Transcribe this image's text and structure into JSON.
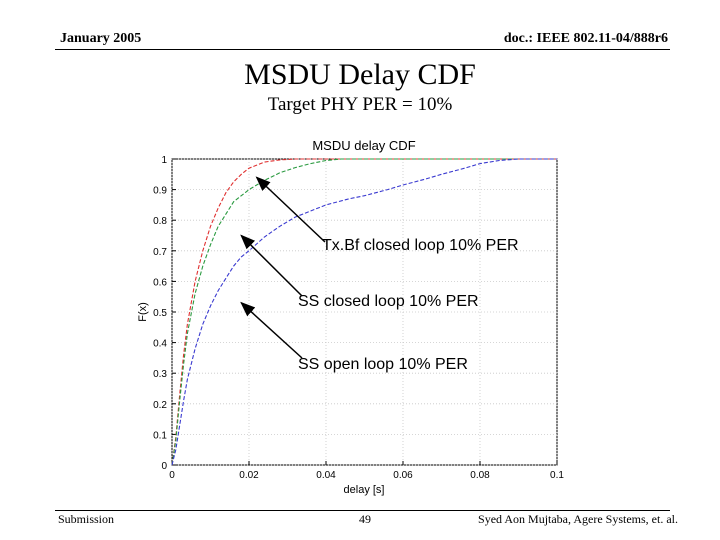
{
  "header": {
    "date": "January 2005",
    "doc_id": "doc.: IEEE 802.11-04/888r6"
  },
  "slide": {
    "title": "MSDU Delay CDF",
    "subtitle": "Target PHY PER = 10%"
  },
  "footer": {
    "left": "Submission",
    "page": "49",
    "right": "Syed Aon Mujtaba, Agere Systems, et. al."
  },
  "chart_data": {
    "type": "line",
    "title": "MSDU delay CDF",
    "xlabel": "delay [s]",
    "ylabel": "F(x)",
    "xlim": [
      0,
      0.1
    ],
    "ylim": [
      0,
      1
    ],
    "grid": true,
    "x_ticks": [
      "0",
      "0.02",
      "0.04",
      "0.06",
      "0.08",
      "0.1"
    ],
    "y_ticks": [
      "0",
      "0.1",
      "0.2",
      "0.3",
      "0.4",
      "0.5",
      "0.6",
      "0.7",
      "0.8",
      "0.9",
      "1"
    ],
    "series": [
      {
        "name": "Tx.Bf closed loop 10% PER",
        "color": "#e03030",
        "style": "dashed",
        "x": [
          0,
          0.001,
          0.002,
          0.003,
          0.004,
          0.006,
          0.008,
          0.01,
          0.012,
          0.014,
          0.016,
          0.018,
          0.02,
          0.024,
          0.028,
          0.032,
          0.036,
          0.04,
          0.05,
          0.06,
          0.07,
          0.08,
          0.09,
          0.1
        ],
        "y": [
          0,
          0.09,
          0.23,
          0.36,
          0.46,
          0.6,
          0.7,
          0.78,
          0.84,
          0.89,
          0.925,
          0.95,
          0.97,
          0.99,
          0.997,
          1.0,
          1.0,
          1.0,
          1.0,
          1.0,
          1.0,
          1.0,
          1.0,
          1.0
        ]
      },
      {
        "name": "SS closed loop 10% PER",
        "color": "#2a9a40",
        "style": "dashed",
        "x": [
          0,
          0.001,
          0.002,
          0.003,
          0.004,
          0.006,
          0.008,
          0.01,
          0.012,
          0.014,
          0.016,
          0.018,
          0.02,
          0.024,
          0.028,
          0.032,
          0.036,
          0.04,
          0.044,
          0.05,
          0.06,
          0.07,
          0.08,
          0.09,
          0.1
        ],
        "y": [
          0,
          0.08,
          0.21,
          0.33,
          0.43,
          0.56,
          0.65,
          0.72,
          0.78,
          0.82,
          0.86,
          0.88,
          0.9,
          0.93,
          0.955,
          0.972,
          0.985,
          0.995,
          1.0,
          1.0,
          1.0,
          1.0,
          1.0,
          1.0,
          1.0
        ]
      },
      {
        "name": "SS open loop 10% PER",
        "color": "#3a3ad0",
        "style": "dashed",
        "x": [
          0,
          0.001,
          0.002,
          0.003,
          0.004,
          0.006,
          0.008,
          0.01,
          0.012,
          0.014,
          0.016,
          0.018,
          0.02,
          0.024,
          0.028,
          0.032,
          0.036,
          0.04,
          0.046,
          0.05,
          0.056,
          0.06,
          0.066,
          0.07,
          0.076,
          0.08,
          0.085,
          0.09,
          0.1
        ],
        "y": [
          0,
          0.05,
          0.13,
          0.21,
          0.28,
          0.38,
          0.46,
          0.52,
          0.57,
          0.61,
          0.65,
          0.68,
          0.7,
          0.745,
          0.78,
          0.81,
          0.83,
          0.85,
          0.87,
          0.88,
          0.9,
          0.915,
          0.935,
          0.95,
          0.97,
          0.985,
          0.995,
          1.0,
          1.0
        ]
      }
    ],
    "annotations": [
      {
        "text": "Tx.Bf closed loop 10% PER",
        "target_x": 0.022,
        "target_y": 0.94
      },
      {
        "text": "SS closed loop 10% PER",
        "target_x": 0.018,
        "target_y": 0.75
      },
      {
        "text": "SS open loop 10% PER",
        "target_x": 0.018,
        "target_y": 0.53
      }
    ]
  }
}
